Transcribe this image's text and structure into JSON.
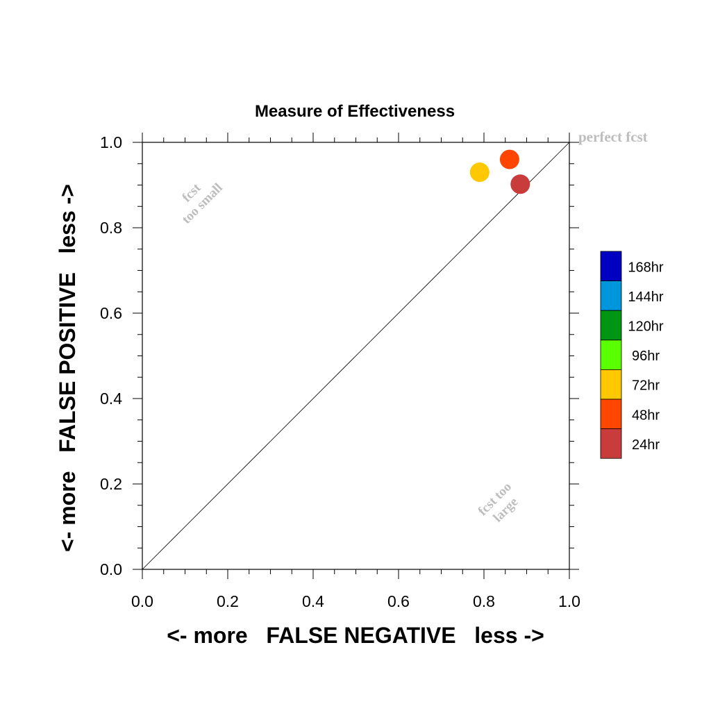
{
  "chart_data": {
    "type": "scatter",
    "title": "Measure of Effectiveness",
    "xlabel": "<- more   FALSE NEGATIVE   less ->",
    "ylabel": "<- more   FALSE POSITIVE   less ->",
    "xlim": [
      0.0,
      1.0
    ],
    "ylim": [
      0.0,
      1.0
    ],
    "x_tick_labels": [
      "0.0",
      "0.2",
      "0.4",
      "0.6",
      "0.8",
      "1.0"
    ],
    "y_tick_labels": [
      "0.0",
      "0.2",
      "0.4",
      "0.6",
      "0.8",
      "1.0"
    ],
    "grid": false,
    "diagonal_reference_line": true,
    "annotations": {
      "perfect": "perfect fcst",
      "too_small_line1": "fcst",
      "too_small_line2": "too small",
      "too_large_line1": "fcst too",
      "too_large_line2": "large"
    },
    "legend_position": "right",
    "legend": [
      {
        "label": "168hr",
        "color": "#0000c0"
      },
      {
        "label": "144hr",
        "color": "#0096dc"
      },
      {
        "label": "120hr",
        "color": "#009614"
      },
      {
        "label": "96hr",
        "color": "#5aff00"
      },
      {
        "label": "72hr",
        "color": "#ffc800"
      },
      {
        "label": "48hr",
        "color": "#ff4600"
      },
      {
        "label": "24hr",
        "color": "#c83c3c"
      }
    ],
    "points": [
      {
        "lead": "72hr",
        "x": 0.79,
        "y": 0.93,
        "color": "#ffc800"
      },
      {
        "lead": "48hr",
        "x": 0.86,
        "y": 0.96,
        "color": "#ff4600"
      },
      {
        "lead": "24hr",
        "x": 0.885,
        "y": 0.902,
        "color": "#c83c3c"
      }
    ]
  }
}
